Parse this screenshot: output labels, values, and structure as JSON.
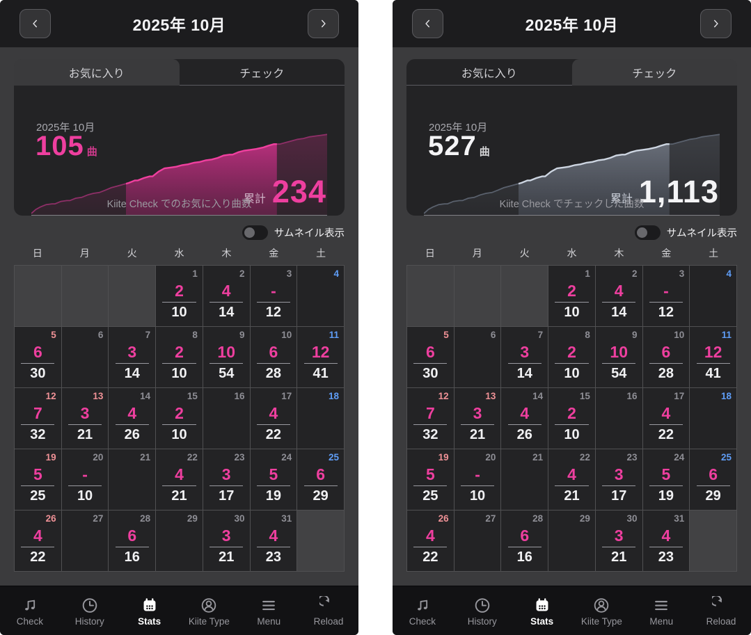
{
  "header": {
    "title": "2025年 10月"
  },
  "tabs": [
    "お気に入り",
    "チェック"
  ],
  "toggle_label": "サムネイル表示",
  "weekdays": [
    "日",
    "月",
    "火",
    "水",
    "木",
    "金",
    "土"
  ],
  "colors": {
    "accent_pink": "#ee3f9f",
    "sunday_date": "#ef9196",
    "saturday_date": "#5f9df6",
    "weekday_date": "#8e8e95",
    "check_value": "#f1f1f3"
  },
  "screens": [
    {
      "name": "favorites",
      "active_tab": 0,
      "month_label": "2025年 10月",
      "count": "105",
      "unit": "曲",
      "total_label": "累計",
      "total": "234",
      "caption": "Kiite Check でのお気に入り曲数",
      "count_color": "#ee3f9f",
      "total_color": "#ee3f9f",
      "total_label_color": "#cfb2c6",
      "chart": {
        "line_dim": "#8f2f68",
        "line_bright": "#f0409f",
        "fill_dim_top": "rgba(190,45,125,0.30)",
        "fill_dim_bottom": "rgba(190,45,125,0.08)",
        "fill_bright_top": "rgba(222,52,148,0.80)",
        "fill_bright_bottom": "rgba(140,35,95,0.50)"
      }
    },
    {
      "name": "check",
      "active_tab": 1,
      "month_label": "2025年 10月",
      "count": "527",
      "unit": "曲",
      "total_label": "累計",
      "total": "1,113",
      "caption": "Kiite Check でチェックした曲数",
      "count_color": "#f4f4f6",
      "total_color": "#f4f4f6",
      "total_label_color": "#c9ced8",
      "chart": {
        "line_dim": "#5a616d",
        "line_bright": "#cdd5e1",
        "fill_dim_top": "rgba(150,160,178,0.22)",
        "fill_dim_bottom": "rgba(150,160,178,0.06)",
        "fill_bright_top": "rgba(170,180,198,0.45)",
        "fill_bright_bottom": "rgba(110,120,138,0.28)"
      }
    }
  ],
  "chart_data": {
    "type": "area",
    "note": "cumulative song-count sparkline, highlighted band = 2025-10",
    "highlight_pct": [
      32,
      83
    ],
    "shared_points_pct": [
      [
        0,
        0
      ],
      [
        1.5,
        5
      ],
      [
        3,
        8
      ],
      [
        5,
        11
      ],
      [
        7,
        12
      ],
      [
        8,
        12
      ],
      [
        10,
        15
      ],
      [
        12,
        16
      ],
      [
        13,
        16
      ],
      [
        15,
        19
      ],
      [
        17,
        20
      ],
      [
        19,
        23
      ],
      [
        21,
        25
      ],
      [
        23,
        26
      ],
      [
        25,
        29
      ],
      [
        27,
        32
      ],
      [
        29,
        34
      ],
      [
        31,
        36
      ],
      [
        33,
        38
      ],
      [
        35,
        41
      ],
      [
        36,
        41
      ],
      [
        38,
        44
      ],
      [
        40,
        46
      ],
      [
        41,
        46
      ],
      [
        43,
        52
      ],
      [
        45,
        56
      ],
      [
        47,
        57
      ],
      [
        49,
        58
      ],
      [
        51,
        60
      ],
      [
        53,
        61
      ],
      [
        55,
        63
      ],
      [
        57,
        64
      ],
      [
        59,
        66
      ],
      [
        61,
        67
      ],
      [
        63,
        69
      ],
      [
        65,
        72
      ],
      [
        67,
        73
      ],
      [
        68,
        73
      ],
      [
        70,
        76
      ],
      [
        72,
        78
      ],
      [
        74,
        79
      ],
      [
        76,
        80
      ],
      [
        78.5,
        82
      ],
      [
        80,
        84
      ],
      [
        82,
        86
      ],
      [
        84,
        86
      ],
      [
        86,
        88
      ],
      [
        88,
        90
      ],
      [
        90,
        92
      ],
      [
        92,
        93
      ],
      [
        94,
        95
      ],
      [
        96,
        96
      ],
      [
        98,
        97
      ],
      [
        100,
        98
      ]
    ],
    "series": [
      {
        "name": "favorites",
        "month": "2025年 10月",
        "month_count": 105,
        "cumulative": 234,
        "caption": "Kiite Check でのお気に入り曲数"
      },
      {
        "name": "check",
        "month": "2025年 10月",
        "month_count": 527,
        "cumulative": 1113,
        "caption": "Kiite Check でチェックした曲数"
      }
    ]
  },
  "calendar": {
    "cells": [
      {
        "out": true
      },
      {
        "out": true
      },
      {
        "out": true
      },
      {
        "d": "1",
        "k": "wd",
        "f": "2",
        "c": "10"
      },
      {
        "d": "2",
        "k": "wd",
        "f": "4",
        "c": "14"
      },
      {
        "d": "3",
        "k": "wd",
        "f": "-",
        "c": "12"
      },
      {
        "d": "4",
        "k": "sat"
      },
      {
        "d": "5",
        "k": "sun",
        "f": "6",
        "c": "30"
      },
      {
        "d": "6",
        "k": "wd"
      },
      {
        "d": "7",
        "k": "wd",
        "f": "3",
        "c": "14"
      },
      {
        "d": "8",
        "k": "wd",
        "f": "2",
        "c": "10"
      },
      {
        "d": "9",
        "k": "wd",
        "f": "10",
        "c": "54"
      },
      {
        "d": "10",
        "k": "wd",
        "f": "6",
        "c": "28"
      },
      {
        "d": "11",
        "k": "sat",
        "f": "12",
        "c": "41"
      },
      {
        "d": "12",
        "k": "sun",
        "f": "7",
        "c": "32"
      },
      {
        "d": "13",
        "k": "sun",
        "f": "3",
        "c": "21"
      },
      {
        "d": "14",
        "k": "wd",
        "f": "4",
        "c": "26"
      },
      {
        "d": "15",
        "k": "wd",
        "f": "2",
        "c": "10"
      },
      {
        "d": "16",
        "k": "wd"
      },
      {
        "d": "17",
        "k": "wd",
        "f": "4",
        "c": "22"
      },
      {
        "d": "18",
        "k": "sat"
      },
      {
        "d": "19",
        "k": "sun",
        "f": "5",
        "c": "25"
      },
      {
        "d": "20",
        "k": "wd",
        "f": "-",
        "c": "10"
      },
      {
        "d": "21",
        "k": "wd"
      },
      {
        "d": "22",
        "k": "wd",
        "f": "4",
        "c": "21"
      },
      {
        "d": "23",
        "k": "wd",
        "f": "3",
        "c": "17"
      },
      {
        "d": "24",
        "k": "wd",
        "f": "5",
        "c": "19"
      },
      {
        "d": "25",
        "k": "sat",
        "f": "6",
        "c": "29"
      },
      {
        "d": "26",
        "k": "sun",
        "f": "4",
        "c": "22"
      },
      {
        "d": "27",
        "k": "wd"
      },
      {
        "d": "28",
        "k": "wd",
        "f": "6",
        "c": "16"
      },
      {
        "d": "29",
        "k": "wd"
      },
      {
        "d": "30",
        "k": "wd",
        "f": "3",
        "c": "21"
      },
      {
        "d": "31",
        "k": "wd",
        "f": "4",
        "c": "23"
      },
      {
        "out": true
      }
    ]
  },
  "nav": [
    {
      "label": "Check",
      "icon": "music-note-icon",
      "active": false
    },
    {
      "label": "History",
      "icon": "clock-icon",
      "active": false
    },
    {
      "label": "Stats",
      "icon": "calendar-icon",
      "active": true
    },
    {
      "label": "Kiite Type",
      "icon": "person-icon",
      "active": false
    },
    {
      "label": "Menu",
      "icon": "menu-icon",
      "active": false
    },
    {
      "label": "Reload",
      "icon": "reload-icon",
      "active": false
    }
  ]
}
